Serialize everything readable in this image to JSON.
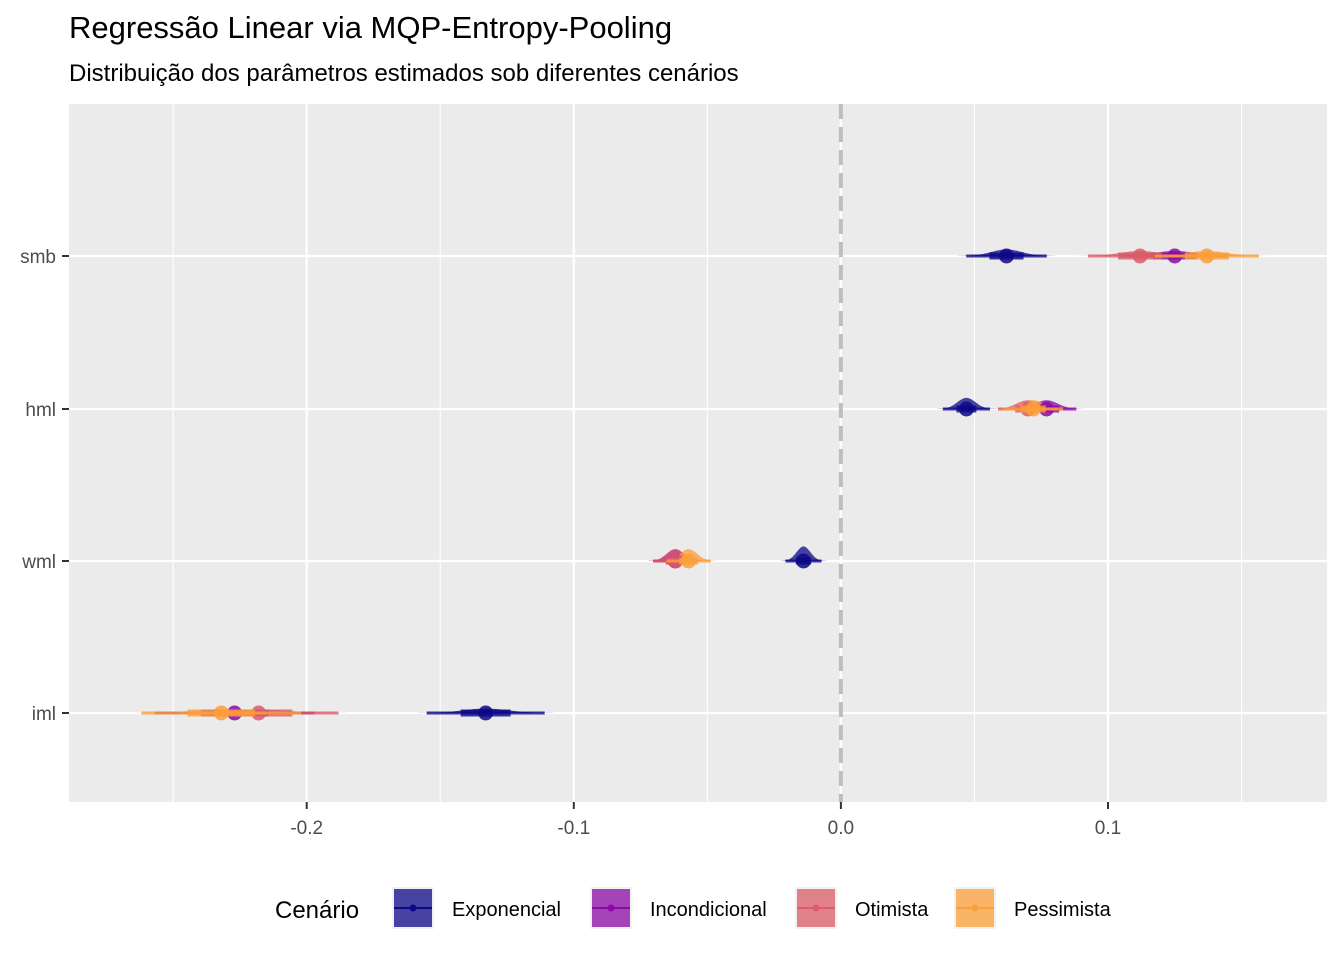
{
  "title": "Regressão Linear via MQP-Entropy-Pooling",
  "subtitle": "Distribuição dos parâmetros estimados sob diferentes cenários",
  "chart_data": {
    "type": "halfeye",
    "title": "Regressão Linear via MQP-Entropy-Pooling",
    "subtitle": "Distribuição dos parâmetros estimados sob diferentes cenários",
    "xlabel": "",
    "ylabel": "",
    "xlim": [
      -0.289,
      0.182
    ],
    "x_ticks": [
      -0.2,
      -0.1,
      0.0,
      0.1
    ],
    "x_tick_labels": [
      "-0.2",
      "-0.1",
      "0.0",
      "0.1"
    ],
    "categories": [
      "iml",
      "wml",
      "hml",
      "smb"
    ],
    "reference_line": {
      "x": 0.0,
      "style": "dashed",
      "color": "#bebebe"
    },
    "grid": true,
    "legend": {
      "title": "Cenário",
      "position": "bottom",
      "entries": [
        {
          "name": "Exponencial",
          "color": "#0d0887"
        },
        {
          "name": "Incondicional",
          "color": "#8b0aa5"
        },
        {
          "name": "Otimista",
          "color": "#db5c68"
        },
        {
          "name": "Pessimista",
          "color": "#fb9f3a"
        }
      ]
    },
    "series": [
      {
        "name": "Exponencial",
        "color": "#0d0887",
        "values": [
          {
            "category": "iml",
            "mean": -0.133,
            "sd": 0.0085
          },
          {
            "category": "wml",
            "mean": -0.014,
            "sd": 0.0026
          },
          {
            "category": "hml",
            "mean": 0.047,
            "sd": 0.0034
          },
          {
            "category": "smb",
            "mean": 0.062,
            "sd": 0.0058
          }
        ]
      },
      {
        "name": "Incondicional",
        "color": "#8b0aa5",
        "values": [
          {
            "category": "iml",
            "mean": -0.227,
            "sd": 0.0115
          },
          {
            "category": "wml",
            "mean": -0.062,
            "sd": 0.0032
          },
          {
            "category": "hml",
            "mean": 0.077,
            "sd": 0.0043
          },
          {
            "category": "smb",
            "mean": 0.125,
            "sd": 0.0075
          }
        ]
      },
      {
        "name": "Otimista",
        "color": "#db5c68",
        "values": [
          {
            "category": "iml",
            "mean": -0.218,
            "sd": 0.0115
          },
          {
            "category": "wml",
            "mean": -0.062,
            "sd": 0.0032
          },
          {
            "category": "hml",
            "mean": 0.07,
            "sd": 0.0043
          },
          {
            "category": "smb",
            "mean": 0.112,
            "sd": 0.0075
          }
        ]
      },
      {
        "name": "Pessimista",
        "color": "#fb9f3a",
        "values": [
          {
            "category": "iml",
            "mean": -0.232,
            "sd": 0.0115
          },
          {
            "category": "wml",
            "mean": -0.057,
            "sd": 0.0032
          },
          {
            "category": "hml",
            "mean": 0.072,
            "sd": 0.0043
          },
          {
            "category": "smb",
            "mean": 0.137,
            "sd": 0.0075
          }
        ]
      }
    ]
  }
}
